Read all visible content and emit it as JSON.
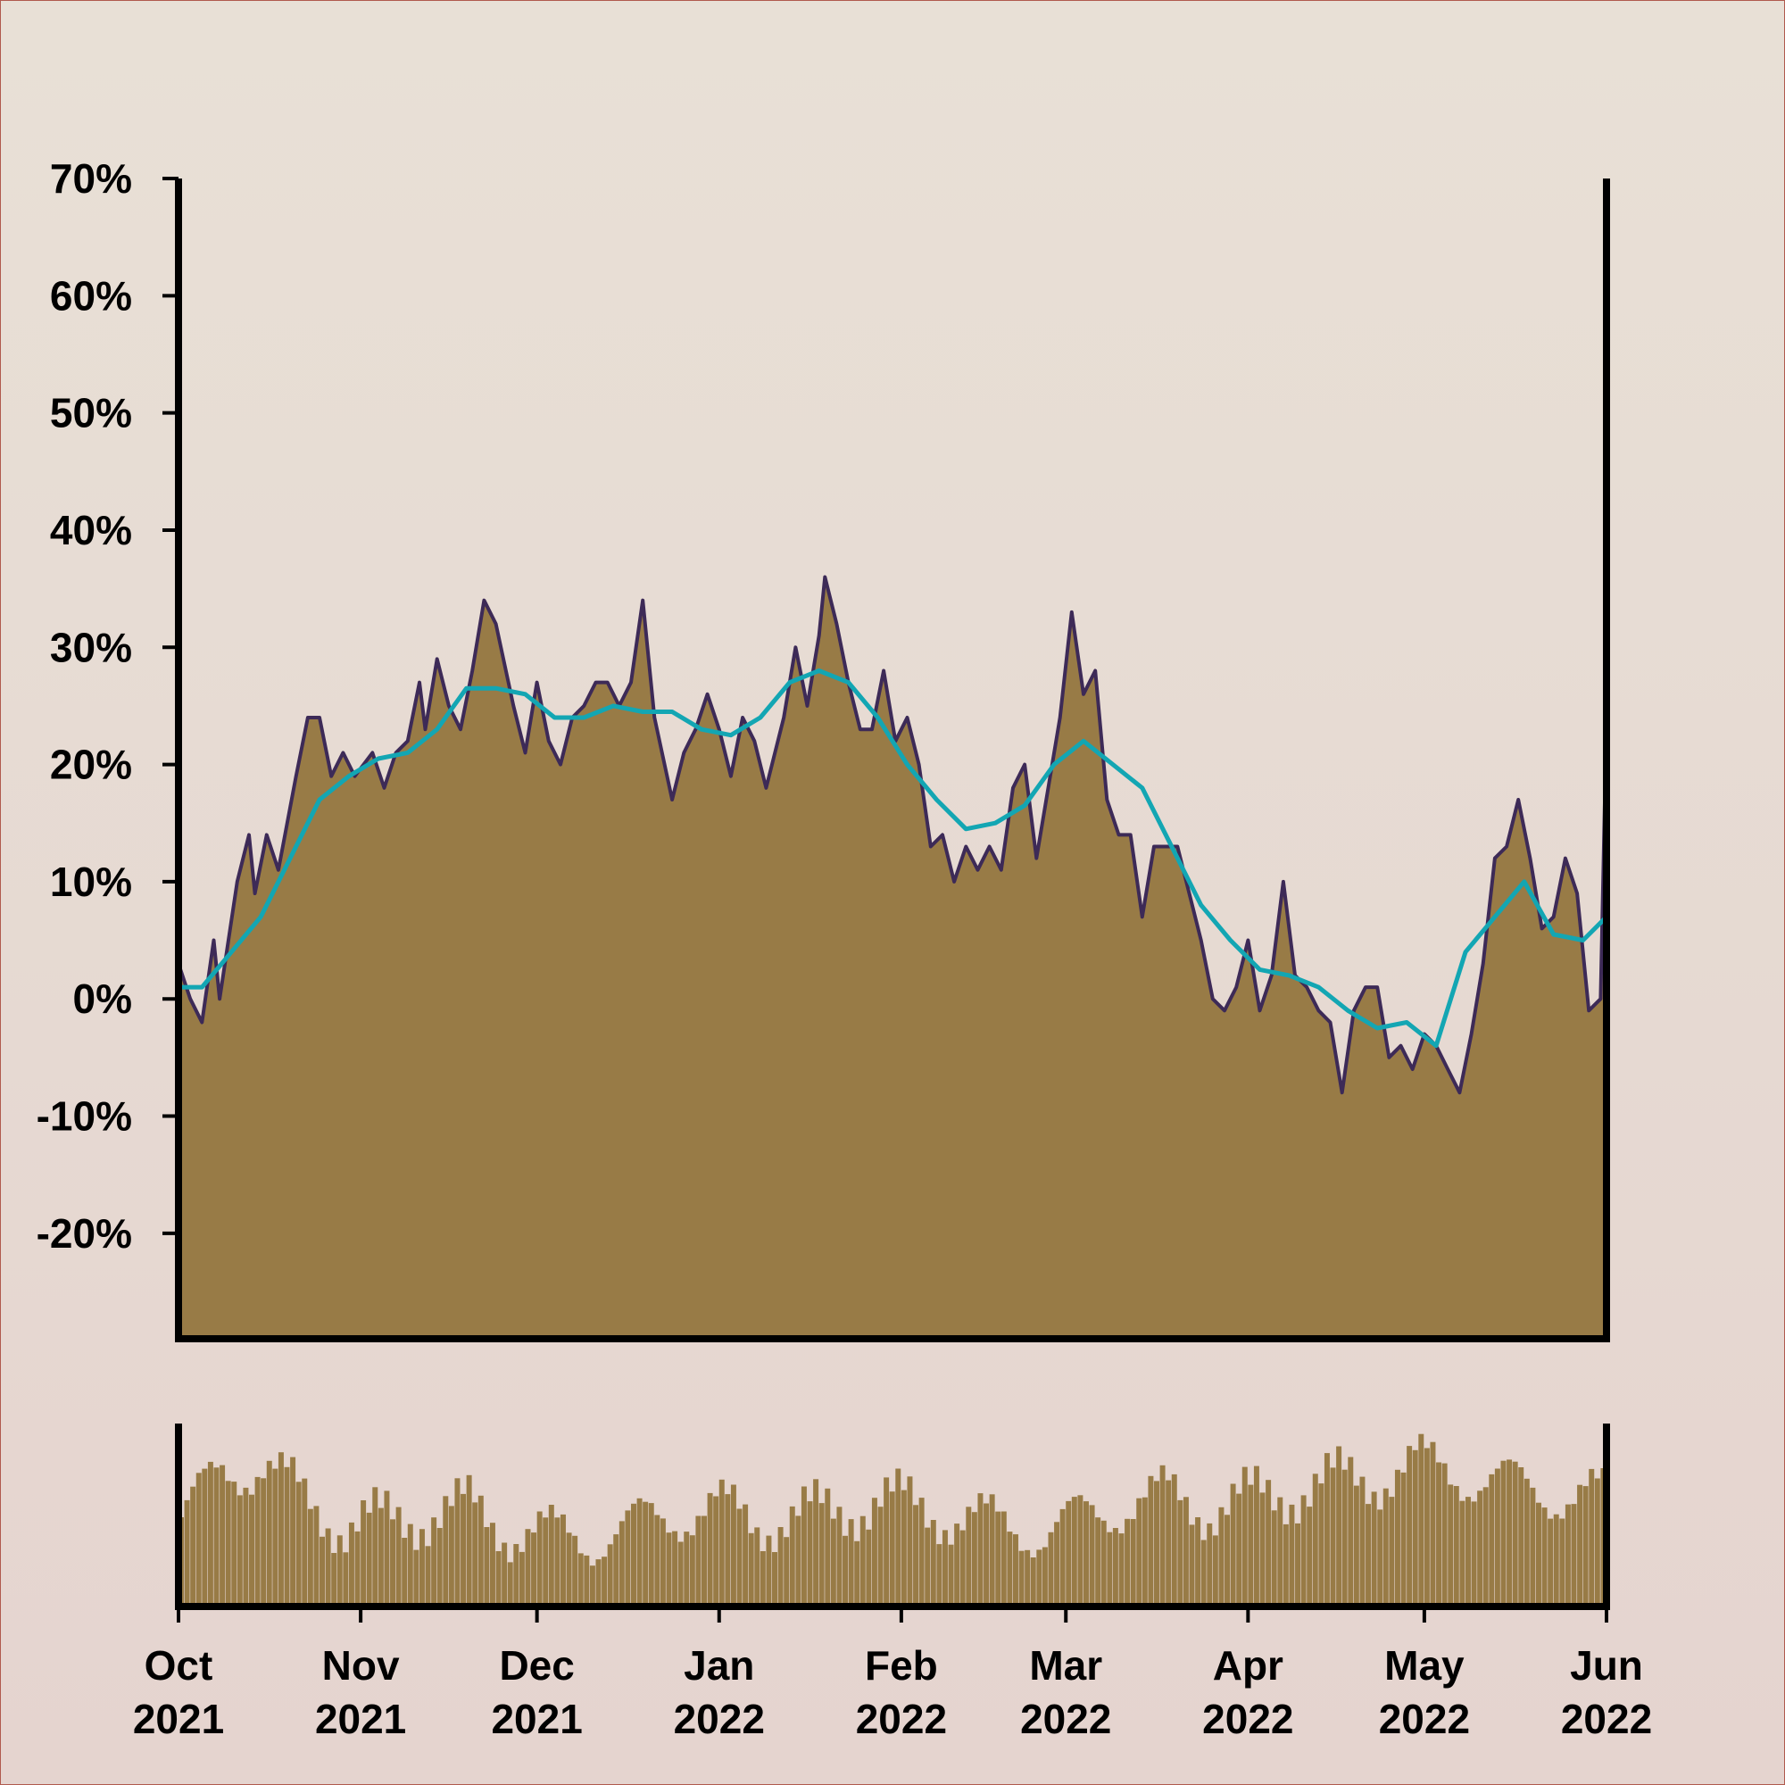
{
  "colors": {
    "background_top": "#E8E0D6",
    "background_bottom": "#E5D4CF",
    "frame": "#B05A4E",
    "area_fill": "#987B46",
    "price_line": "#3D2A57",
    "moving_average": "#13A6B3",
    "axis": "#000000"
  },
  "chart_data": [
    {
      "type": "area",
      "x_axis": {
        "type": "date",
        "range": [
          "2021-10-01",
          "2022-06-01"
        ],
        "tick_labels": [
          {
            "date": "2021-10-01",
            "month": "Oct",
            "year": "2021"
          },
          {
            "date": "2021-11-01",
            "month": "Nov",
            "year": "2021"
          },
          {
            "date": "2021-12-01",
            "month": "Dec",
            "year": "2021"
          },
          {
            "date": "2022-01-01",
            "month": "Jan",
            "year": "2022"
          },
          {
            "date": "2022-02-01",
            "month": "Feb",
            "year": "2022"
          },
          {
            "date": "2022-03-01",
            "month": "Mar",
            "year": "2022"
          },
          {
            "date": "2022-04-01",
            "month": "Apr",
            "year": "2022"
          },
          {
            "date": "2022-05-01",
            "month": "May",
            "year": "2022"
          },
          {
            "date": "2022-06-01",
            "month": "Jun",
            "year": "2022"
          }
        ]
      },
      "y_axis": {
        "unit": "%",
        "range": [
          -29,
          70
        ],
        "ticks": [
          70,
          60,
          50,
          40,
          30,
          20,
          10,
          0,
          -10,
          -20
        ],
        "tick_labels": [
          "70%",
          "60%",
          "50%",
          "40%",
          "30%",
          "20%",
          "10%",
          "0%",
          "-10%",
          "-20%"
        ]
      },
      "grid": false,
      "legend": "none",
      "series": [
        {
          "style": "filled area with dark outline",
          "points": [
            [
              "2021-10-01",
              3
            ],
            [
              "2021-10-03",
              0
            ],
            [
              "2021-10-05",
              -2
            ],
            [
              "2021-10-07",
              5
            ],
            [
              "2021-10-08",
              0
            ],
            [
              "2021-10-11",
              10
            ],
            [
              "2021-10-13",
              14
            ],
            [
              "2021-10-14",
              9
            ],
            [
              "2021-10-16",
              14
            ],
            [
              "2021-10-18",
              11
            ],
            [
              "2021-10-21",
              19
            ],
            [
              "2021-10-23",
              24
            ],
            [
              "2021-10-25",
              24
            ],
            [
              "2021-10-27",
              19
            ],
            [
              "2021-10-29",
              21
            ],
            [
              "2021-10-31",
              19
            ],
            [
              "2021-11-03",
              21
            ],
            [
              "2021-11-05",
              18
            ],
            [
              "2021-11-07",
              21
            ],
            [
              "2021-11-09",
              22
            ],
            [
              "2021-11-11",
              27
            ],
            [
              "2021-11-12",
              23
            ],
            [
              "2021-11-14",
              29
            ],
            [
              "2021-11-16",
              25
            ],
            [
              "2021-11-18",
              23
            ],
            [
              "2021-11-20",
              28
            ],
            [
              "2021-11-22",
              34
            ],
            [
              "2021-11-24",
              32
            ],
            [
              "2021-11-27",
              25
            ],
            [
              "2021-11-29",
              21
            ],
            [
              "2021-12-01",
              27
            ],
            [
              "2021-12-03",
              22
            ],
            [
              "2021-12-05",
              20
            ],
            [
              "2021-12-07",
              24
            ],
            [
              "2021-12-09",
              25
            ],
            [
              "2021-12-11",
              27
            ],
            [
              "2021-12-13",
              27
            ],
            [
              "2021-12-15",
              25
            ],
            [
              "2021-12-17",
              27
            ],
            [
              "2021-12-19",
              34
            ],
            [
              "2021-12-21",
              24
            ],
            [
              "2021-12-24",
              17
            ],
            [
              "2021-12-26",
              21
            ],
            [
              "2021-12-28",
              23
            ],
            [
              "2021-12-30",
              26
            ],
            [
              "2022-01-01",
              23
            ],
            [
              "2022-01-03",
              19
            ],
            [
              "2022-01-05",
              24
            ],
            [
              "2022-01-07",
              22
            ],
            [
              "2022-01-09",
              18
            ],
            [
              "2022-01-12",
              24
            ],
            [
              "2022-01-14",
              30
            ],
            [
              "2022-01-16",
              25
            ],
            [
              "2022-01-18",
              31
            ],
            [
              "2022-01-19",
              36
            ],
            [
              "2022-01-21",
              32
            ],
            [
              "2022-01-23",
              27
            ],
            [
              "2022-01-25",
              23
            ],
            [
              "2022-01-27",
              23
            ],
            [
              "2022-01-29",
              28
            ],
            [
              "2022-01-31",
              22
            ],
            [
              "2022-02-02",
              24
            ],
            [
              "2022-02-04",
              20
            ],
            [
              "2022-02-06",
              13
            ],
            [
              "2022-02-08",
              14
            ],
            [
              "2022-02-10",
              10
            ],
            [
              "2022-02-12",
              13
            ],
            [
              "2022-02-14",
              11
            ],
            [
              "2022-02-16",
              13
            ],
            [
              "2022-02-18",
              11
            ],
            [
              "2022-02-20",
              18
            ],
            [
              "2022-02-22",
              20
            ],
            [
              "2022-02-24",
              12
            ],
            [
              "2022-02-26",
              18
            ],
            [
              "2022-02-28",
              24
            ],
            [
              "2022-03-02",
              33
            ],
            [
              "2022-03-04",
              26
            ],
            [
              "2022-03-06",
              28
            ],
            [
              "2022-03-08",
              17
            ],
            [
              "2022-03-10",
              14
            ],
            [
              "2022-03-12",
              14
            ],
            [
              "2022-03-14",
              7
            ],
            [
              "2022-03-16",
              13
            ],
            [
              "2022-03-18",
              13
            ],
            [
              "2022-03-20",
              13
            ],
            [
              "2022-03-22",
              9
            ],
            [
              "2022-03-24",
              5
            ],
            [
              "2022-03-26",
              0
            ],
            [
              "2022-03-28",
              -1
            ],
            [
              "2022-03-30",
              1
            ],
            [
              "2022-04-01",
              5
            ],
            [
              "2022-04-03",
              -1
            ],
            [
              "2022-04-05",
              2
            ],
            [
              "2022-04-07",
              10
            ],
            [
              "2022-04-09",
              2
            ],
            [
              "2022-04-11",
              1
            ],
            [
              "2022-04-13",
              -1
            ],
            [
              "2022-04-15",
              -2
            ],
            [
              "2022-04-17",
              -8
            ],
            [
              "2022-04-19",
              -1
            ],
            [
              "2022-04-21",
              1
            ],
            [
              "2022-04-23",
              1
            ],
            [
              "2022-04-25",
              -5
            ],
            [
              "2022-04-27",
              -4
            ],
            [
              "2022-04-29",
              -6
            ],
            [
              "2022-05-01",
              -3
            ],
            [
              "2022-05-03",
              -4
            ],
            [
              "2022-05-05",
              -6
            ],
            [
              "2022-05-07",
              -8
            ],
            [
              "2022-05-09",
              -3
            ],
            [
              "2022-05-11",
              3
            ],
            [
              "2022-05-13",
              12
            ],
            [
              "2022-05-15",
              13
            ],
            [
              "2022-05-17",
              17
            ],
            [
              "2022-05-19",
              12
            ],
            [
              "2022-05-21",
              6
            ],
            [
              "2022-05-23",
              7
            ],
            [
              "2022-05-25",
              12
            ],
            [
              "2022-05-27",
              9
            ],
            [
              "2022-05-29",
              -1
            ],
            [
              "2022-05-31",
              0
            ],
            [
              "2022-06-01",
              24
            ]
          ]
        },
        {
          "style": "smoothed line",
          "points": [
            [
              "2021-10-01",
              1
            ],
            [
              "2021-10-05",
              1
            ],
            [
              "2021-10-10",
              4
            ],
            [
              "2021-10-15",
              7
            ],
            [
              "2021-10-20",
              12
            ],
            [
              "2021-10-25",
              17
            ],
            [
              "2021-10-30",
              19
            ],
            [
              "2021-11-04",
              20.5
            ],
            [
              "2021-11-09",
              21
            ],
            [
              "2021-11-14",
              23
            ],
            [
              "2021-11-19",
              26.5
            ],
            [
              "2021-11-24",
              26.5
            ],
            [
              "2021-11-29",
              26
            ],
            [
              "2021-12-04",
              24
            ],
            [
              "2021-12-09",
              24
            ],
            [
              "2021-12-14",
              25
            ],
            [
              "2021-12-19",
              24.5
            ],
            [
              "2021-12-24",
              24.5
            ],
            [
              "2021-12-29",
              23
            ],
            [
              "2022-01-03",
              22.5
            ],
            [
              "2022-01-08",
              24
            ],
            [
              "2022-01-13",
              27
            ],
            [
              "2022-01-18",
              28
            ],
            [
              "2022-01-23",
              27
            ],
            [
              "2022-01-28",
              24
            ],
            [
              "2022-02-02",
              20
            ],
            [
              "2022-02-07",
              17
            ],
            [
              "2022-02-12",
              14.5
            ],
            [
              "2022-02-17",
              15
            ],
            [
              "2022-02-22",
              16.5
            ],
            [
              "2022-02-27",
              20
            ],
            [
              "2022-03-04",
              22
            ],
            [
              "2022-03-09",
              20
            ],
            [
              "2022-03-14",
              18
            ],
            [
              "2022-03-19",
              13
            ],
            [
              "2022-03-24",
              8
            ],
            [
              "2022-03-29",
              5
            ],
            [
              "2022-04-03",
              2.5
            ],
            [
              "2022-04-08",
              2
            ],
            [
              "2022-04-13",
              1
            ],
            [
              "2022-04-18",
              -1
            ],
            [
              "2022-04-23",
              -2.5
            ],
            [
              "2022-04-28",
              -2
            ],
            [
              "2022-05-03",
              -4
            ],
            [
              "2022-05-08",
              4
            ],
            [
              "2022-05-13",
              7
            ],
            [
              "2022-05-18",
              10
            ],
            [
              "2022-05-23",
              5.5
            ],
            [
              "2022-05-28",
              5
            ],
            [
              "2022-06-01",
              7
            ]
          ]
        }
      ]
    },
    {
      "type": "bar",
      "description_role": "lower volume panel",
      "x_axis_range": [
        "2021-10-01",
        "2022-06-01"
      ],
      "y_axis_range": [
        0,
        100
      ],
      "bar_count": 243,
      "values_by_week": [
        50,
        75,
        80,
        60,
        45,
        48,
        52,
        55,
        43,
        40,
        38,
        45,
        52,
        55,
        48,
        50,
        54,
        60,
        55,
        50,
        45,
        42,
        50,
        58,
        62,
        55,
        60,
        65,
        70,
        72,
        80,
        75,
        70,
        65,
        62,
        60
      ]
    }
  ]
}
